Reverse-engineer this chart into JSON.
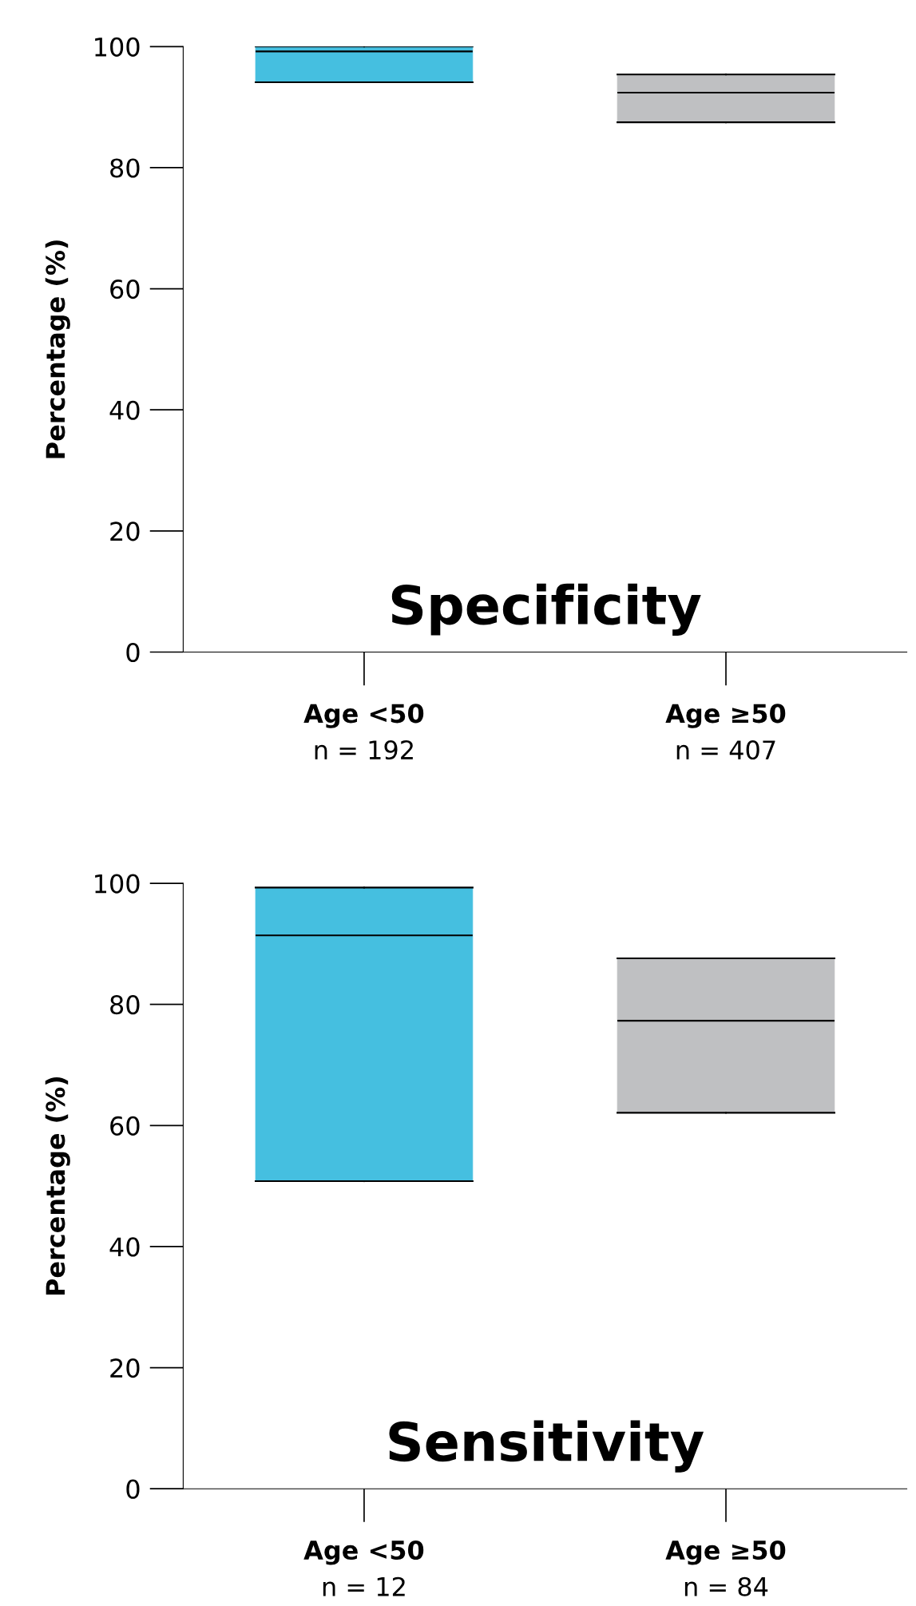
{
  "chart_data": [
    {
      "type": "box",
      "title": "Specificity",
      "ylabel": "Percentage (%)",
      "categories": [
        "Age <50\nn = 192",
        "Age ≥50\nn = 407"
      ],
      "colors": [
        "#45bfe0",
        "#bfc0c2"
      ],
      "ylim": [
        0,
        100
      ],
      "yticks": [
        0,
        20,
        40,
        60,
        80,
        100
      ],
      "grid": false,
      "boxes": [
        {
          "low": 94.1,
          "q1": 94.1,
          "median": 99.2,
          "q3": 100,
          "high": 100
        },
        {
          "low": 87.5,
          "q1": 87.5,
          "median": 92.4,
          "q3": 95.4,
          "high": 95.4
        }
      ]
    },
    {
      "type": "box",
      "title": "Sensitivity",
      "ylabel": "Percentage (%)",
      "categories": [
        "Age <50\nn = 12",
        "Age ≥50\nn = 84"
      ],
      "colors": [
        "#45bfe0",
        "#bfc0c2"
      ],
      "ylim": [
        0,
        100
      ],
      "yticks": [
        0,
        20,
        40,
        60,
        80,
        100
      ],
      "grid": false,
      "boxes": [
        {
          "low": 50.8,
          "q1": 50.8,
          "median": 91.4,
          "q3": 99.3,
          "high": 99.3
        },
        {
          "low": 62.1,
          "q1": 62.1,
          "median": 77.3,
          "q3": 87.6,
          "high": 87.6
        }
      ]
    }
  ]
}
